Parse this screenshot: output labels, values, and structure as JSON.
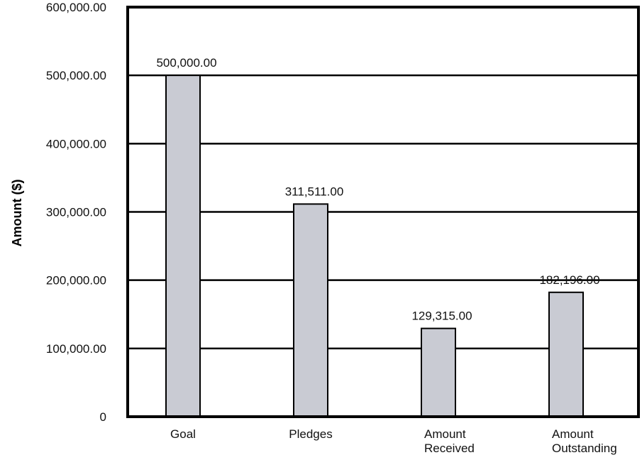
{
  "chart_data": {
    "type": "bar",
    "title": "",
    "xlabel": "",
    "ylabel": "Amount ($)",
    "ylim": [
      0,
      600000
    ],
    "yticks": [
      0,
      100000,
      200000,
      300000,
      400000,
      500000,
      600000
    ],
    "ytick_labels": [
      "0",
      "100,000.00",
      "200,000.00",
      "300,000.00",
      "400,000.00",
      "500,000.00",
      "600,000.00"
    ],
    "grid": true,
    "categories": [
      "Goal",
      "Pledges",
      "Amount Received",
      "Amount Outstanding"
    ],
    "category_label_lines": [
      [
        "Goal"
      ],
      [
        "Pledges"
      ],
      [
        "Amount",
        "Received"
      ],
      [
        "Amount",
        "Outstanding"
      ]
    ],
    "values": [
      500000,
      311511,
      129315,
      182196
    ],
    "data_labels": [
      "500,000.00",
      "311,511.00",
      "129,315.00",
      "182,196.00"
    ],
    "bar_color": "#c9cbd3",
    "bar_edge_color": "#000000",
    "grid_color": "#000000"
  }
}
